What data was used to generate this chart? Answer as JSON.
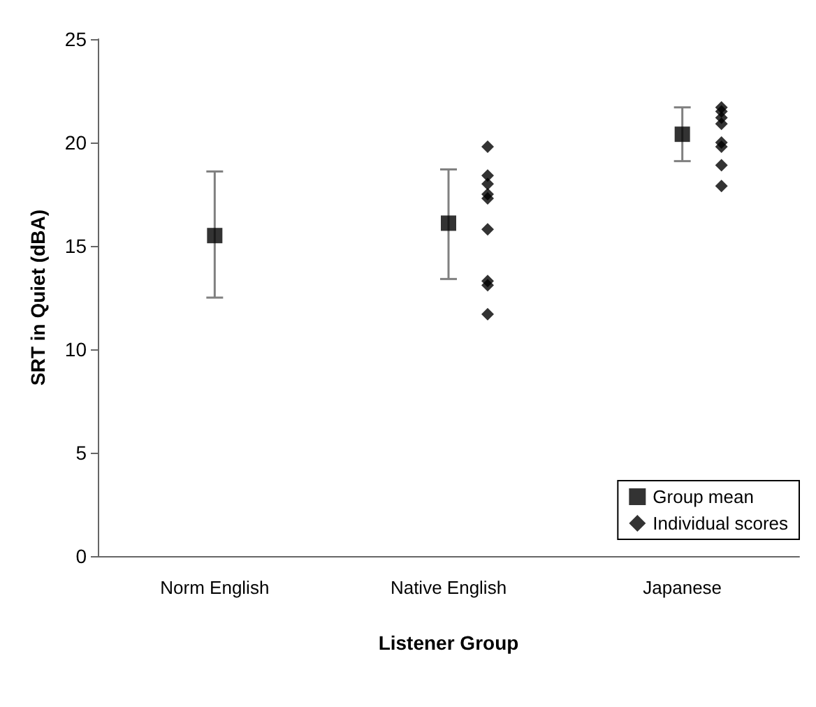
{
  "chart_data": {
    "type": "scatter",
    "xlabel": "Listener Group",
    "ylabel": "SRT in Quiet (dBA)",
    "categories": [
      "Norm English",
      "Native English",
      "Japanese"
    ],
    "series": [
      {
        "name": "Group mean",
        "color": "#000000",
        "marker": "square",
        "values": [
          15.5,
          16.1,
          20.4
        ],
        "errors": [
          [
            12.5,
            18.6
          ],
          [
            13.4,
            18.7
          ],
          [
            19.1,
            21.7
          ]
        ]
      },
      {
        "name": "Individual scores",
        "color": "#000000",
        "marker": "diamond",
        "x": [
          "Native English",
          "Native English",
          "Native English",
          "Native English",
          "Native English",
          "Native English",
          "Native English",
          "Native English",
          "Native English",
          "Japanese",
          "Japanese",
          "Japanese",
          "Japanese",
          "Japanese",
          "Japanese",
          "Japanese",
          "Japanese"
        ],
        "values": [
          19.8,
          18.4,
          18.0,
          17.5,
          17.3,
          15.8,
          13.3,
          13.1,
          11.7,
          21.7,
          21.5,
          21.2,
          20.9,
          20.0,
          19.8,
          18.9,
          17.9
        ]
      }
    ],
    "ylim": [
      0,
      25
    ],
    "yticks": [
      0,
      5,
      10,
      15,
      20,
      25
    ],
    "grid": false,
    "legend": "bottom right"
  }
}
